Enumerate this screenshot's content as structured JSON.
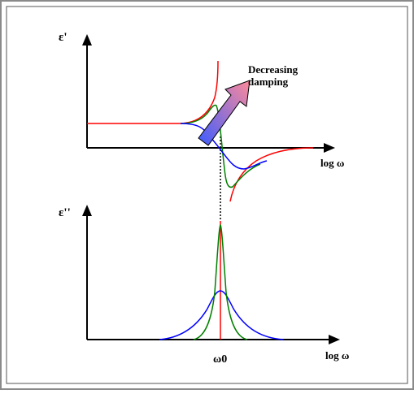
{
  "labels": {
    "eps_prime": "ε'",
    "eps_double_prime": "ε''",
    "log_omega_top": "log ω",
    "log_omega_bottom": "log ω",
    "omega0": "ω0",
    "annotation_line1": "Decreasing",
    "annotation_line2": "damping"
  },
  "colors": {
    "frame": "#8a8a8a",
    "axis": "#000000",
    "undamped": "#ff0000",
    "medium_damping": "#008000",
    "high_damping": "#0000ff",
    "arrow_start": "#3b5cff",
    "arrow_end": "#ff8a9a"
  }
}
